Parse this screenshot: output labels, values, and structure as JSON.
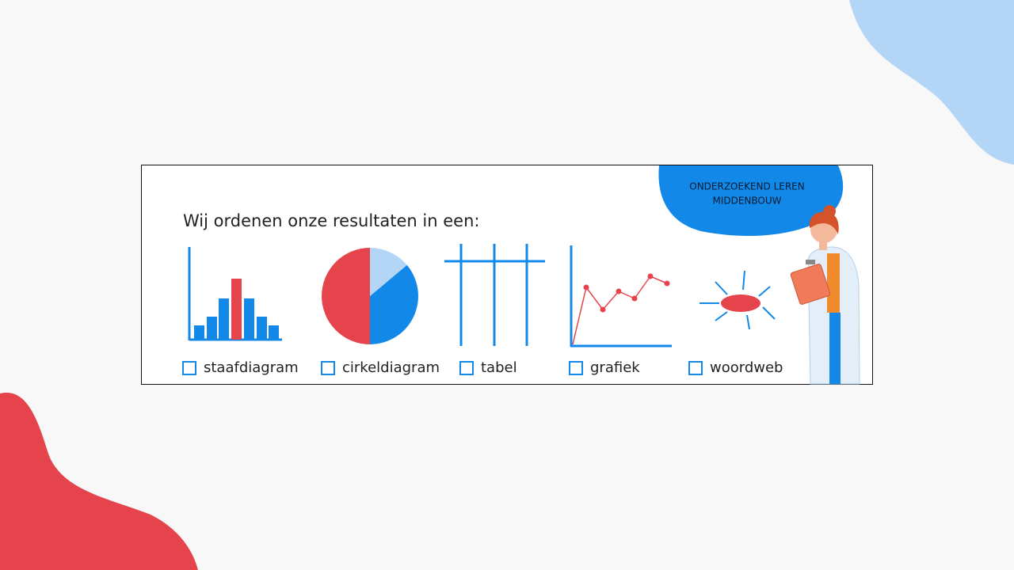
{
  "badge": {
    "lines": [
      "ONDERZOEKEND LEREN",
      "MIDDENBOUW"
    ]
  },
  "title": "Wij ordenen onze resultaten in een:",
  "options": [
    "staafdiagram",
    "cirkeldiagram",
    "tabel",
    "grafiek",
    "woordweb"
  ]
}
